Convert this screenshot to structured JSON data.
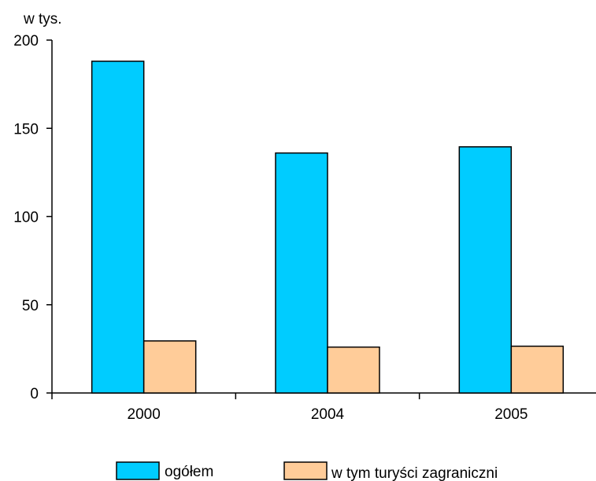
{
  "chart_data": {
    "type": "bar",
    "unit_label": "w tys.",
    "categories": [
      "2000",
      "2004",
      "2005"
    ],
    "series": [
      {
        "name": "ogółem",
        "values": [
          188,
          136,
          139.5
        ],
        "color": "#00ccff"
      },
      {
        "name": "w tym turyści zagraniczni",
        "values": [
          29.5,
          26,
          26.5
        ],
        "color": "#ffcc99"
      }
    ],
    "y_ticks": [
      "0",
      "50",
      "100",
      "150",
      "200"
    ],
    "ylim": [
      0,
      200
    ],
    "grid": false,
    "legend_position": "bottom"
  }
}
